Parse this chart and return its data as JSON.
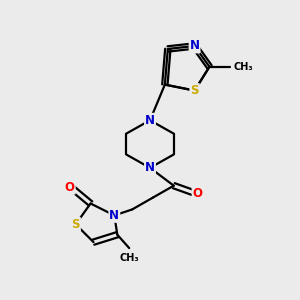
{
  "bg_color": "#ebebeb",
  "bond_color": "#000000",
  "N_color": "#0000cc",
  "O_color": "#ff0000",
  "S_color": "#ccaa00",
  "line_width": 1.6,
  "font_size_atom": 8.5,
  "fig_width": 3.0,
  "fig_height": 3.0,
  "dpi": 100,
  "xlim": [
    0,
    10
  ],
  "ylim": [
    0,
    10
  ]
}
